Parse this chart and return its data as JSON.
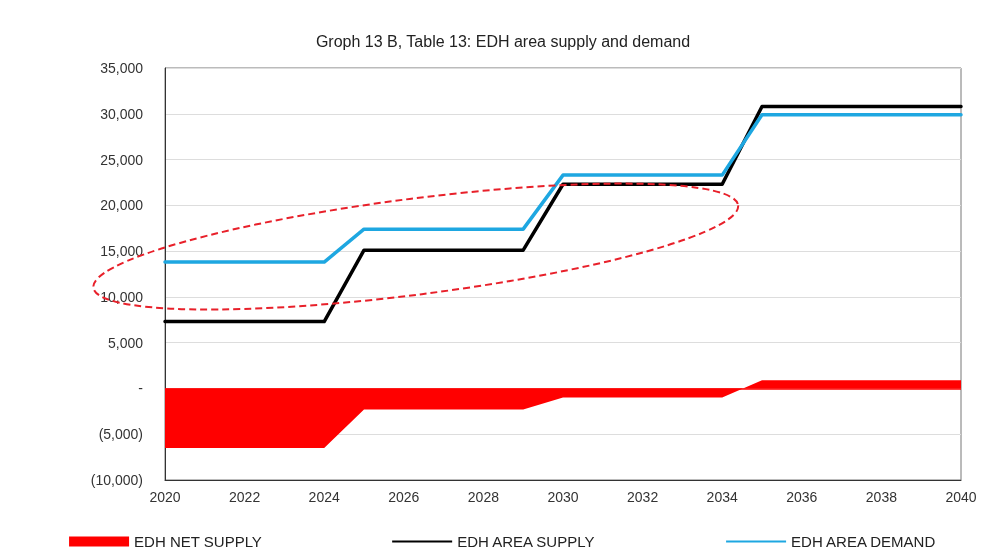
{
  "chart_data": {
    "type": "line",
    "title": "Groph 13 B, Table 13: EDH area supply and demand",
    "x": [
      2020,
      2021,
      2022,
      2023,
      2024,
      2025,
      2026,
      2027,
      2028,
      2029,
      2030,
      2031,
      2032,
      2033,
      2034,
      2035,
      2036,
      2037,
      2038,
      2039,
      2040
    ],
    "series": [
      {
        "name": "EDH NET SUPPLY",
        "type": "area",
        "color": "#ff0000",
        "values": [
          -6500,
          -6500,
          -6500,
          -6500,
          -6500,
          -2300,
          -2300,
          -2300,
          -2300,
          -2300,
          -1000,
          -1000,
          -1000,
          -1000,
          -1000,
          900,
          900,
          900,
          900,
          900,
          900
        ]
      },
      {
        "name": "EDH AREA SUPPLY",
        "color": "#000000",
        "values": [
          7300,
          7300,
          7300,
          7300,
          7300,
          15100,
          15100,
          15100,
          15100,
          15100,
          22300,
          22300,
          22300,
          22300,
          22300,
          30800,
          30800,
          30800,
          30800,
          30800,
          30800
        ]
      },
      {
        "name": "EDH AREA DEMAND",
        "color": "#1ea7e1",
        "values": [
          13800,
          13800,
          13800,
          13800,
          13800,
          17400,
          17400,
          17400,
          17400,
          17400,
          23300,
          23300,
          23300,
          23300,
          23300,
          29900,
          29900,
          29900,
          29900,
          29900,
          29900
        ]
      }
    ],
    "xlim": [
      2020,
      2040
    ],
    "xticks": [
      2020,
      2022,
      2024,
      2026,
      2028,
      2030,
      2032,
      2034,
      2036,
      2038,
      2040
    ],
    "ylim": [
      -10000,
      35000
    ],
    "yticks": [
      {
        "value": -10000,
        "label": "(10,000)"
      },
      {
        "value": -5000,
        "label": "(5,000)"
      },
      {
        "value": 0,
        "label": "-"
      },
      {
        "value": 5000,
        "label": "5,000"
      },
      {
        "value": 10000,
        "label": "10,000"
      },
      {
        "value": 15000,
        "label": "15,000"
      },
      {
        "value": 20000,
        "label": "20,000"
      },
      {
        "value": 25000,
        "label": "25,000"
      },
      {
        "value": 30000,
        "label": "30,000"
      },
      {
        "value": 35000,
        "label": "35,000"
      }
    ],
    "ref_lines": [
      {
        "axis": "y",
        "value": 0,
        "color": "#ff0000"
      }
    ],
    "grid": "y",
    "legend": "bottom",
    "marker": "none",
    "line_style": "solid"
  }
}
